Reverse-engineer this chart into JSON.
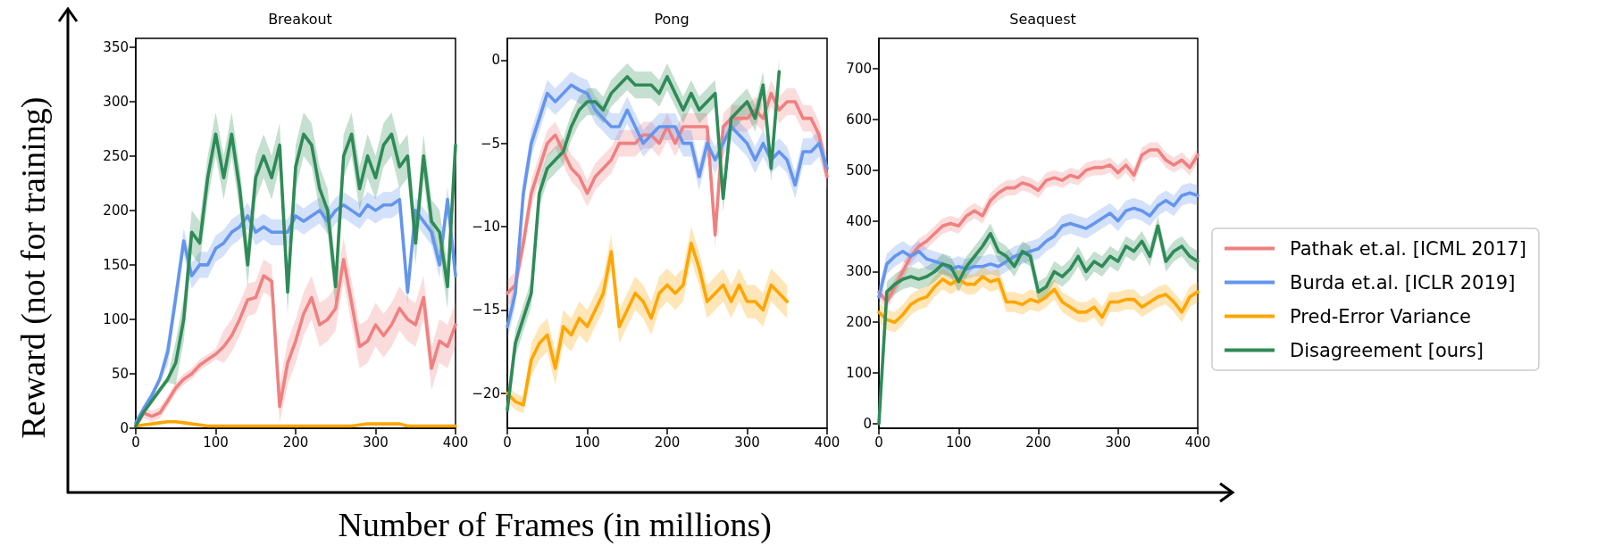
{
  "chart_data": [
    {
      "type": "line",
      "title": "Breakout",
      "ylabel": "Reward (not for training)",
      "xlim": [
        0,
        400
      ],
      "xticks": [
        0,
        100,
        200,
        300,
        400
      ],
      "ylim": [
        0,
        358
      ],
      "yticks": [
        0,
        50,
        100,
        150,
        200,
        250,
        300,
        350
      ],
      "grid": false,
      "legend": false,
      "marker": "none",
      "line_style": "solid",
      "x": [
        0,
        10,
        20,
        30,
        40,
        50,
        60,
        70,
        80,
        90,
        100,
        110,
        120,
        130,
        140,
        150,
        160,
        170,
        180,
        190,
        200,
        210,
        220,
        230,
        240,
        250,
        260,
        270,
        280,
        290,
        300,
        310,
        320,
        330,
        340,
        350,
        360,
        370,
        380,
        390,
        400
      ],
      "series": [
        {
          "color": "#f08080",
          "values": [
            3,
            14,
            11,
            14,
            25,
            37,
            45,
            50,
            58,
            63,
            68,
            75,
            85,
            100,
            118,
            120,
            140,
            135,
            20,
            60,
            80,
            105,
            120,
            95,
            100,
            110,
            155,
            115,
            75,
            80,
            95,
            85,
            95,
            110,
            100,
            95,
            120,
            55,
            80,
            75,
            95
          ],
          "lower": [
            0,
            9,
            6,
            9,
            20,
            32,
            40,
            45,
            53,
            58,
            63,
            60,
            70,
            85,
            103,
            105,
            125,
            120,
            5,
            40,
            60,
            85,
            100,
            75,
            80,
            90,
            135,
            95,
            55,
            60,
            75,
            65,
            75,
            90,
            80,
            75,
            100,
            35,
            60,
            55,
            75
          ],
          "upper": [
            8,
            19,
            16,
            19,
            30,
            42,
            50,
            55,
            63,
            68,
            73,
            90,
            100,
            115,
            133,
            135,
            155,
            150,
            40,
            80,
            100,
            125,
            140,
            115,
            120,
            130,
            175,
            135,
            95,
            100,
            115,
            105,
            115,
            130,
            120,
            115,
            140,
            75,
            100,
            95,
            115
          ]
        },
        {
          "color": "#6495ed",
          "values": [
            5,
            18,
            30,
            45,
            70,
            120,
            172,
            140,
            150,
            150,
            165,
            170,
            180,
            185,
            195,
            180,
            185,
            180,
            180,
            180,
            195,
            190,
            195,
            200,
            190,
            200,
            205,
            200,
            195,
            205,
            200,
            205,
            205,
            210,
            125,
            200,
            190,
            180,
            150,
            210,
            140
          ],
          "lower": [
            1,
            14,
            26,
            41,
            58,
            108,
            160,
            128,
            138,
            138,
            153,
            158,
            168,
            173,
            183,
            168,
            173,
            168,
            168,
            168,
            183,
            178,
            183,
            188,
            178,
            188,
            193,
            188,
            183,
            193,
            188,
            193,
            193,
            198,
            113,
            188,
            178,
            168,
            138,
            198,
            128
          ],
          "upper": [
            9,
            22,
            34,
            49,
            82,
            132,
            184,
            152,
            162,
            162,
            177,
            182,
            192,
            197,
            207,
            192,
            197,
            192,
            192,
            192,
            207,
            202,
            207,
            212,
            202,
            212,
            217,
            212,
            207,
            217,
            212,
            217,
            217,
            222,
            137,
            212,
            202,
            192,
            162,
            222,
            152
          ]
        },
        {
          "color": "#ffa500",
          "values": [
            2,
            3,
            4,
            5,
            6,
            6,
            5,
            4,
            3,
            2,
            2,
            2,
            2,
            2,
            2,
            2,
            2,
            2,
            2,
            2,
            2,
            2,
            2,
            2,
            2,
            2,
            2,
            2,
            3,
            4,
            4,
            4,
            4,
            4,
            2,
            2,
            2,
            2,
            2,
            2,
            2
          ]
        },
        {
          "color": "#2e8b57",
          "values": [
            2,
            15,
            25,
            35,
            45,
            60,
            100,
            180,
            170,
            230,
            270,
            230,
            270,
            220,
            150,
            230,
            250,
            230,
            260,
            125,
            240,
            270,
            260,
            220,
            200,
            130,
            250,
            270,
            220,
            250,
            230,
            260,
            270,
            240,
            250,
            170,
            250,
            190,
            180,
            130,
            260
          ],
          "lower": [
            0,
            12,
            22,
            32,
            42,
            40,
            80,
            160,
            150,
            210,
            250,
            210,
            250,
            200,
            130,
            210,
            230,
            210,
            240,
            105,
            220,
            250,
            240,
            200,
            180,
            110,
            230,
            250,
            200,
            230,
            210,
            240,
            250,
            220,
            230,
            150,
            230,
            170,
            160,
            110,
            240
          ],
          "upper": [
            5,
            18,
            28,
            38,
            48,
            80,
            120,
            200,
            190,
            250,
            290,
            250,
            290,
            240,
            170,
            250,
            270,
            250,
            280,
            145,
            260,
            290,
            280,
            240,
            220,
            150,
            270,
            290,
            240,
            270,
            250,
            280,
            290,
            260,
            270,
            190,
            270,
            210,
            200,
            150,
            280
          ]
        }
      ]
    },
    {
      "type": "line",
      "title": "Pong",
      "xlabel": "Number of Frames (in millions)",
      "xlim": [
        0,
        400
      ],
      "xticks": [
        0,
        100,
        200,
        300,
        400
      ],
      "ylim": [
        -22.1,
        1.3
      ],
      "yticks": [
        -20,
        -15,
        -10,
        -5,
        0
      ],
      "grid": false,
      "legend": false,
      "marker": "none",
      "line_style": "solid",
      "x": [
        0,
        10,
        20,
        30,
        40,
        50,
        60,
        70,
        80,
        90,
        100,
        110,
        120,
        130,
        140,
        150,
        160,
        170,
        180,
        190,
        200,
        210,
        220,
        230,
        240,
        250,
        260,
        270,
        280,
        290,
        300,
        310,
        320,
        330,
        340,
        350,
        360,
        370,
        380,
        390,
        400
      ],
      "series": [
        {
          "color": "#f08080",
          "values": [
            -14,
            -13.5,
            -11,
            -8,
            -6.5,
            -5,
            -4.5,
            -5.5,
            -6.5,
            -7,
            -8,
            -7,
            -6.5,
            -6,
            -5,
            -5,
            -5,
            -4.5,
            -4.5,
            -5,
            -4,
            -5,
            -4,
            -4,
            -4,
            -4,
            -10.5,
            -4,
            -3.5,
            -3.5,
            -3.5,
            -3,
            -3.5,
            -2,
            -3,
            -2.5,
            -2.5,
            -3.5,
            -3.5,
            -4.5,
            -7
          ],
          "lower": [
            -14.8,
            -14.3,
            -11.8,
            -8.8,
            -7.3,
            -5.8,
            -5.3,
            -6.3,
            -7.3,
            -7.8,
            -8.8,
            -7.8,
            -7.3,
            -6.8,
            -5.8,
            -5.8,
            -5.8,
            -5.3,
            -5.3,
            -5.8,
            -4.8,
            -5.8,
            -4.8,
            -4.8,
            -4.8,
            -4.8,
            -11.3,
            -4.8,
            -4.3,
            -4.3,
            -4.3,
            -3.8,
            -4.3,
            -2.8,
            -3.8,
            -3.3,
            -3.3,
            -4.3,
            -4.3,
            -5.3,
            -7.8
          ],
          "upper": [
            -13.2,
            -12.7,
            -10.2,
            -7.2,
            -5.7,
            -4.2,
            -3.7,
            -4.7,
            -5.7,
            -6.2,
            -7.2,
            -6.2,
            -5.7,
            -5.2,
            -4.2,
            -4.2,
            -4.2,
            -3.7,
            -3.7,
            -4.2,
            -3.2,
            -4.2,
            -3.2,
            -3.2,
            -3.2,
            -3.2,
            -9.7,
            -3.2,
            -2.7,
            -2.7,
            -2.7,
            -2.2,
            -2.7,
            -1.2,
            -2.2,
            -1.7,
            -1.7,
            -2.7,
            -2.7,
            -3.7,
            -6.2
          ]
        },
        {
          "color": "#6495ed",
          "values": [
            -16,
            -14,
            -8,
            -5,
            -3.5,
            -2,
            -2.5,
            -2,
            -1.5,
            -1.8,
            -2,
            -3,
            -3.5,
            -4,
            -4,
            -3,
            -4,
            -5,
            -4.5,
            -4,
            -4,
            -4,
            -5,
            -5,
            -7,
            -5,
            -6,
            -5,
            -4,
            -4.5,
            -5,
            -6,
            -5,
            -6,
            -5.5,
            -6,
            -7.5,
            -5.5,
            -5.5,
            -5,
            -6.5
          ],
          "lower": [
            -16.8,
            -14.8,
            -8.8,
            -5.8,
            -4.3,
            -2.8,
            -3.3,
            -2.8,
            -2.3,
            -2.6,
            -2.8,
            -3.8,
            -4.3,
            -4.8,
            -4.8,
            -3.8,
            -4.8,
            -5.8,
            -5.3,
            -4.8,
            -4.8,
            -4.8,
            -5.8,
            -5.8,
            -7.8,
            -5.8,
            -6.8,
            -5.8,
            -4.8,
            -5.3,
            -5.8,
            -6.8,
            -5.8,
            -6.8,
            -6.3,
            -6.8,
            -8.3,
            -6.3,
            -6.3,
            -5.8,
            -7.3
          ],
          "upper": [
            -15.2,
            -13.2,
            -7.2,
            -4.2,
            -2.7,
            -1.2,
            -1.7,
            -1.2,
            -0.7,
            -1,
            -1.2,
            -2.2,
            -2.7,
            -3.2,
            -3.2,
            -2.2,
            -3.2,
            -4.2,
            -3.7,
            -3.2,
            -3.2,
            -3.2,
            -4.2,
            -4.2,
            -6.2,
            -4.2,
            -5.2,
            -4.2,
            -3.2,
            -3.7,
            -4.2,
            -5.2,
            -4.2,
            -5.2,
            -4.7,
            -5.2,
            -6.7,
            -4.7,
            -4.7,
            -4.2,
            -5.7
          ]
        },
        {
          "color": "#ffa500",
          "values": [
            -20,
            -20.5,
            -20.7,
            -18,
            -17,
            -16.5,
            -18.5,
            -16,
            -16.5,
            -15.5,
            -16,
            -15,
            -14,
            -11.5,
            -16,
            -15,
            -14,
            -14.5,
            -15.5,
            -14,
            -13.5,
            -14,
            -13.5,
            -11,
            -12.5,
            -14.5,
            -14,
            -13.5,
            -14.5,
            -13.5,
            -14.5,
            -14.5,
            -15,
            -13.5,
            -14,
            -14.5,
            null,
            null,
            null,
            null,
            null
          ],
          "lower": [
            -20.5,
            -21,
            -21.2,
            -19,
            -18,
            -17.5,
            -19.5,
            -17,
            -17.5,
            -16.5,
            -17,
            -16,
            -15,
            -12.5,
            -17,
            -16,
            -15,
            -15.5,
            -16.5,
            -15,
            -14.5,
            -15,
            -14.5,
            -12,
            -13.5,
            -15.5,
            -15,
            -14.5,
            -15.5,
            -14.5,
            -15.5,
            -15.5,
            -16,
            -14.5,
            -15,
            -15.5,
            null,
            null,
            null,
            null,
            null
          ],
          "upper": [
            -19.5,
            -20,
            -20.2,
            -17,
            -16,
            -15.5,
            -17.5,
            -15,
            -15.5,
            -14.5,
            -15,
            -14,
            -13,
            -10.5,
            -15,
            -14,
            -13,
            -13.5,
            -14.5,
            -13,
            -12.5,
            -13,
            -12.5,
            -10,
            -11.5,
            -13.5,
            -13,
            -12.5,
            -13.5,
            -12.5,
            -13.5,
            -13.5,
            -14,
            -12.5,
            -13,
            -13.5,
            null,
            null,
            null,
            null,
            null
          ]
        },
        {
          "color": "#2e8b57",
          "values": [
            -21,
            -17,
            -15.5,
            -14,
            -8,
            -6.5,
            -6,
            -5.5,
            -4,
            -3,
            -2.5,
            -2.5,
            -3,
            -2,
            -1.5,
            -1,
            -1.5,
            -1.5,
            -1.5,
            -2,
            -1,
            -2,
            -3,
            -2,
            -3,
            -2.5,
            -2,
            -8.3,
            -3.5,
            -3,
            -2.5,
            -3.5,
            -1.5,
            -6.5,
            -0.7,
            null,
            null,
            null,
            null,
            null,
            null
          ],
          "lower": [
            -21.8,
            -17.8,
            -16.3,
            -14.8,
            -8.8,
            -7.3,
            -6.8,
            -6.3,
            -4.8,
            -3.8,
            -3.3,
            -3.3,
            -3.8,
            -2.8,
            -2.3,
            -1.8,
            -2.3,
            -2.3,
            -2.3,
            -2.8,
            -1.8,
            -2.8,
            -3.8,
            -2.8,
            -3.8,
            -3.3,
            -2.8,
            -9.1,
            -4.3,
            -3.8,
            -3.3,
            -4.3,
            -2.3,
            -7.3,
            -1.5,
            null,
            null,
            null,
            null,
            null,
            null
          ],
          "upper": [
            -20.2,
            -16.2,
            -14.7,
            -13.2,
            -7.2,
            -5.7,
            -5.2,
            -4.7,
            -3.2,
            -2.2,
            -1.7,
            -1.7,
            -2.2,
            -1.2,
            -0.7,
            -0.2,
            -0.7,
            -0.7,
            -0.7,
            -1.2,
            -0.2,
            -1.2,
            -2.2,
            -1.2,
            -2.2,
            -1.7,
            -1.2,
            -7.5,
            -2.7,
            -2.2,
            -1.7,
            -2.7,
            -0.7,
            -5.7,
            0.1,
            null,
            null,
            null,
            null,
            null,
            null
          ]
        }
      ]
    },
    {
      "type": "line",
      "title": "Seaquest",
      "xlim": [
        0,
        400
      ],
      "xticks": [
        0,
        100,
        200,
        300,
        400
      ],
      "ylim": [
        -9,
        760
      ],
      "yticks": [
        0,
        100,
        200,
        300,
        400,
        500,
        600,
        700
      ],
      "grid": false,
      "legend": "right",
      "marker": "none",
      "line_style": "solid",
      "x": [
        0,
        10,
        20,
        30,
        40,
        50,
        60,
        70,
        80,
        90,
        100,
        110,
        120,
        130,
        140,
        150,
        160,
        170,
        180,
        190,
        200,
        210,
        220,
        230,
        240,
        250,
        260,
        270,
        280,
        290,
        300,
        310,
        320,
        330,
        340,
        350,
        360,
        370,
        380,
        390,
        400
      ],
      "series": [
        {
          "name": "Pathak et.al. [ICML 2017]",
          "color": "#f08080",
          "values": [
            260,
            240,
            270,
            300,
            330,
            350,
            360,
            375,
            390,
            395,
            390,
            410,
            420,
            410,
            440,
            455,
            465,
            465,
            475,
            470,
            460,
            480,
            485,
            480,
            490,
            485,
            500,
            505,
            505,
            510,
            495,
            510,
            490,
            530,
            540,
            540,
            520,
            510,
            520,
            505,
            530
          ],
          "lower": [
            245,
            225,
            255,
            285,
            315,
            335,
            345,
            360,
            375,
            380,
            375,
            395,
            405,
            395,
            425,
            440,
            450,
            450,
            460,
            455,
            445,
            465,
            470,
            465,
            475,
            470,
            485,
            490,
            490,
            495,
            480,
            495,
            475,
            515,
            525,
            525,
            505,
            495,
            505,
            490,
            515
          ],
          "upper": [
            275,
            255,
            285,
            315,
            345,
            365,
            375,
            390,
            405,
            410,
            405,
            425,
            435,
            425,
            455,
            470,
            480,
            480,
            490,
            485,
            475,
            495,
            500,
            495,
            505,
            500,
            515,
            520,
            520,
            525,
            510,
            525,
            505,
            545,
            555,
            555,
            535,
            525,
            535,
            520,
            545
          ]
        },
        {
          "name": "Burda et.al. [ICLR 2019]",
          "color": "#6495ed",
          "values": [
            250,
            315,
            330,
            340,
            330,
            340,
            325,
            320,
            315,
            305,
            310,
            305,
            310,
            310,
            315,
            310,
            320,
            330,
            335,
            340,
            345,
            360,
            370,
            390,
            395,
            390,
            385,
            395,
            405,
            415,
            400,
            420,
            425,
            420,
            410,
            430,
            440,
            430,
            450,
            455,
            450
          ],
          "lower": [
            230,
            295,
            310,
            320,
            310,
            320,
            305,
            300,
            295,
            285,
            290,
            285,
            290,
            290,
            295,
            290,
            300,
            310,
            315,
            320,
            325,
            340,
            350,
            370,
            375,
            370,
            365,
            375,
            385,
            395,
            380,
            400,
            405,
            400,
            390,
            410,
            420,
            410,
            430,
            435,
            430
          ],
          "upper": [
            270,
            335,
            350,
            360,
            350,
            360,
            345,
            340,
            335,
            325,
            330,
            325,
            330,
            330,
            335,
            330,
            340,
            350,
            355,
            360,
            365,
            380,
            390,
            410,
            415,
            410,
            405,
            415,
            425,
            435,
            420,
            440,
            445,
            440,
            430,
            450,
            460,
            450,
            470,
            475,
            470
          ]
        },
        {
          "name": "Pred-Error Variance",
          "color": "#ffa500",
          "values": [
            220,
            205,
            200,
            215,
            235,
            245,
            250,
            270,
            285,
            275,
            285,
            275,
            275,
            290,
            280,
            285,
            240,
            240,
            235,
            245,
            240,
            250,
            265,
            240,
            230,
            220,
            220,
            230,
            210,
            240,
            240,
            245,
            245,
            230,
            240,
            250,
            255,
            240,
            220,
            250,
            260
          ],
          "lower": [
            200,
            185,
            180,
            195,
            215,
            225,
            230,
            250,
            265,
            255,
            265,
            255,
            255,
            270,
            260,
            265,
            220,
            220,
            215,
            225,
            220,
            230,
            245,
            220,
            210,
            200,
            200,
            210,
            190,
            220,
            220,
            225,
            225,
            210,
            220,
            230,
            235,
            220,
            200,
            230,
            240
          ],
          "upper": [
            240,
            225,
            220,
            235,
            255,
            265,
            270,
            290,
            305,
            295,
            305,
            295,
            295,
            310,
            300,
            305,
            260,
            260,
            255,
            265,
            260,
            270,
            285,
            260,
            250,
            240,
            240,
            250,
            230,
            260,
            260,
            265,
            265,
            250,
            260,
            270,
            275,
            260,
            240,
            270,
            280
          ]
        },
        {
          "name": "Disagreement [ours]",
          "color": "#2e8b57",
          "values": [
            0,
            260,
            275,
            285,
            290,
            285,
            290,
            300,
            315,
            310,
            280,
            310,
            330,
            350,
            375,
            340,
            330,
            310,
            340,
            330,
            260,
            270,
            300,
            290,
            305,
            330,
            300,
            320,
            310,
            330,
            320,
            350,
            340,
            360,
            330,
            390,
            320,
            340,
            350,
            330,
            320
          ],
          "lower": [
            0,
            240,
            255,
            265,
            270,
            265,
            270,
            280,
            295,
            290,
            260,
            290,
            310,
            330,
            355,
            320,
            310,
            290,
            320,
            310,
            240,
            250,
            280,
            270,
            285,
            310,
            280,
            300,
            290,
            310,
            300,
            330,
            320,
            340,
            310,
            370,
            300,
            320,
            330,
            310,
            300
          ],
          "upper": [
            0,
            280,
            295,
            305,
            310,
            305,
            310,
            320,
            335,
            330,
            300,
            330,
            350,
            370,
            395,
            360,
            350,
            330,
            360,
            350,
            280,
            290,
            320,
            310,
            325,
            350,
            320,
            340,
            330,
            350,
            340,
            370,
            360,
            380,
            350,
            410,
            340,
            360,
            370,
            350,
            340
          ]
        }
      ]
    }
  ]
}
